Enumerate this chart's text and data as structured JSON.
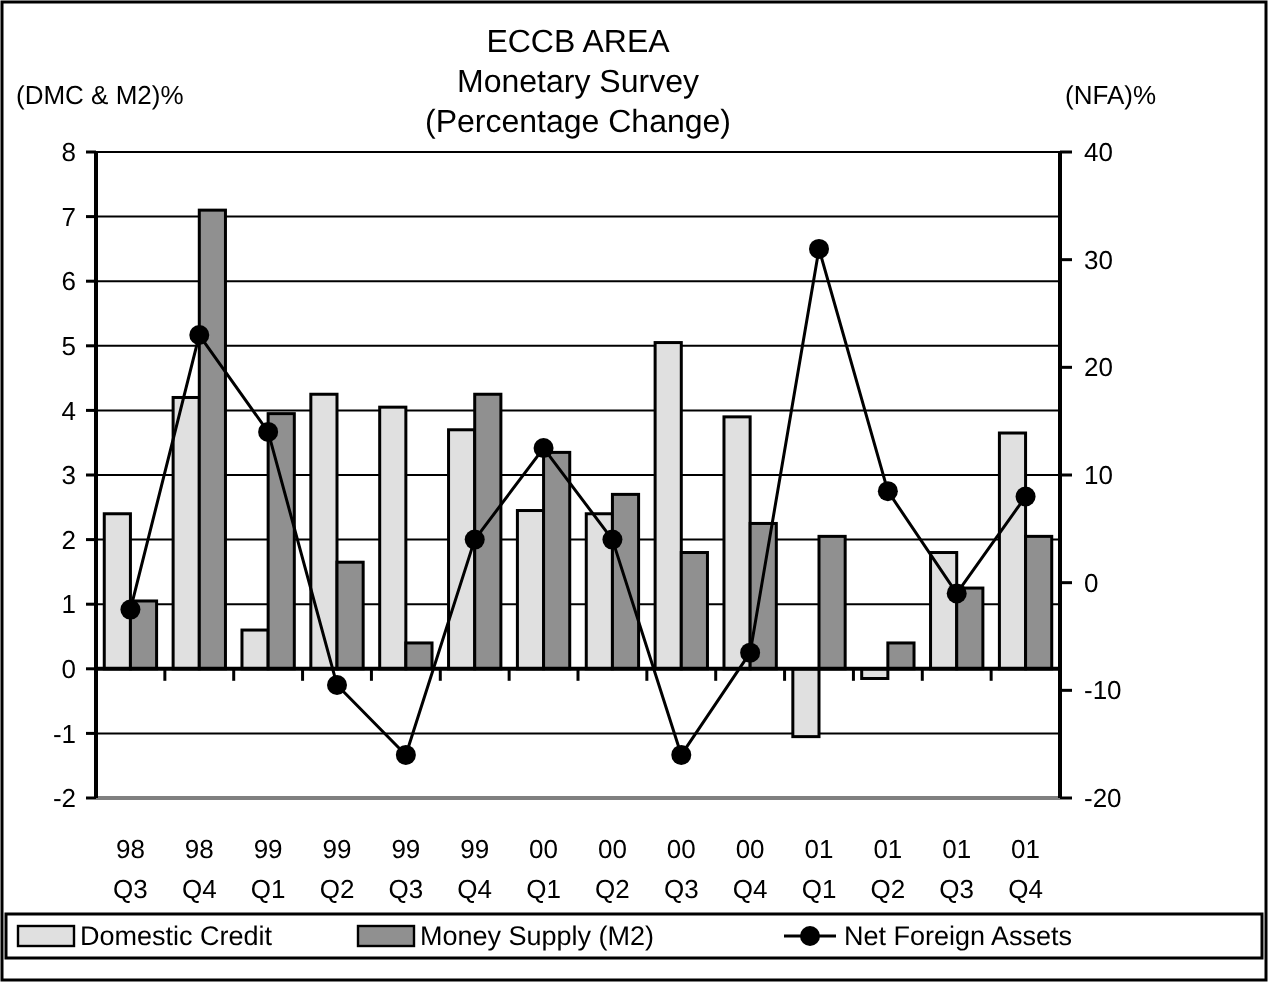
{
  "chart_data": {
    "type": "bar",
    "title": "ECCB AREA",
    "subtitle": "Monetary Survey\n(Percentage Change)",
    "ylabel": "(DMC & M2)%",
    "y2label": "(NFA)%",
    "categories": [
      "98\nQ3",
      "98\nQ4",
      "99\nQ1",
      "99\nQ2",
      "99\nQ3",
      "99\nQ4",
      "00\nQ1",
      "00\nQ2",
      "00\nQ3",
      "00\nQ4",
      "01\nQ1",
      "01\nQ2",
      "01\nQ3",
      "01\nQ4"
    ],
    "series": [
      {
        "name": "Domestic Credit",
        "color": "#e0e0e0",
        "values": [
          2.4,
          4.2,
          0.6,
          4.25,
          4.05,
          3.7,
          2.45,
          2.4,
          5.05,
          3.9,
          -1.05,
          -0.15,
          1.8,
          3.65
        ]
      },
      {
        "name": "Money Supply (M2)",
        "color": "#909090",
        "values": [
          1.05,
          7.1,
          3.95,
          1.65,
          0.4,
          4.25,
          3.35,
          2.7,
          1.8,
          2.25,
          2.05,
          0.4,
          1.25,
          2.05
        ]
      },
      {
        "name": "Net Foreign Assets",
        "type": "line",
        "axis": "y2",
        "color": "#000000",
        "marker": "circle",
        "values": [
          -2.5,
          23,
          14,
          -9.5,
          -16,
          4,
          12.5,
          4,
          -16,
          -6.5,
          31,
          8.5,
          -1,
          8
        ]
      }
    ],
    "ylim": [
      -2,
      8
    ],
    "yticks": [
      -2,
      -1,
      0,
      1,
      2,
      3,
      4,
      5,
      6,
      7,
      8
    ],
    "y2lim": [
      -20,
      40
    ],
    "y2ticks": [
      -20,
      -10,
      0,
      10,
      20,
      30,
      40
    ],
    "grid": "y",
    "legend": "bottom"
  }
}
